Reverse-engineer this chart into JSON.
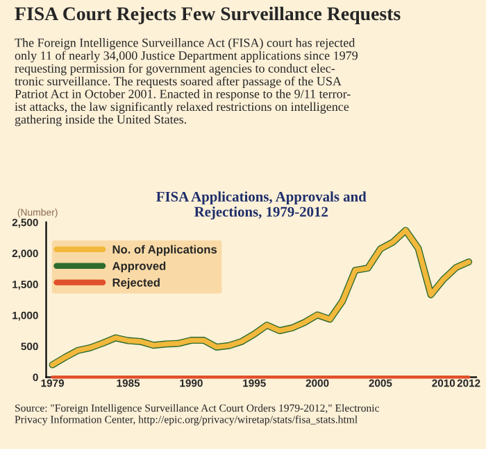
{
  "chart_data": {
    "type": "line",
    "title": "FISA Applications, Approvals and\nRejections, 1979-2012",
    "ylabel": "(Number)",
    "annotations": [
      "FISA Court Rejects Few Surveillance Requests",
      "The Foreign Intelligence Surveillance Act (FISA) court has rejected\nonly 11 of nearly 34,000 Justice Department applications since 1979\nrequesting permission for government agencies to conduct elec-\ntronic surveillance. The requests soared after passage of the USA\nPatriot Act in October 2001. Enacted in response to the 9/11 terror-\nist attacks, the law significantly relaxed restrictions on intelligence\ngathering inside the United States.",
      "Source: \"Foreign Intelligence Surveillance Act Court Orders 1979-2012,\" Electronic\nPrivacy Information Center, http://epic.org/privacy/wiretap/stats/fisa_stats.html"
    ],
    "x": [
      1979,
      1980,
      1981,
      1982,
      1983,
      1984,
      1985,
      1986,
      1987,
      1988,
      1989,
      1990,
      1991,
      1992,
      1993,
      1994,
      1995,
      1996,
      1997,
      1998,
      1999,
      2000,
      2001,
      2002,
      2003,
      2004,
      2005,
      2006,
      2007,
      2008,
      2009,
      2010,
      2011,
      2012
    ],
    "series": [
      {
        "name": "No. of Applications",
        "color": "#f2b83c",
        "values": [
          200,
          320,
          430,
          475,
          550,
          635,
          590,
          575,
          515,
          535,
          545,
          595,
          595,
          485,
          510,
          575,
          695,
          840,
          750,
          795,
          885,
          1005,
          935,
          1230,
          1725,
          1760,
          2070,
          2180,
          2370,
          2080,
          1330,
          1580,
          1770,
          1860
        ]
      },
      {
        "name": "Approved",
        "color": "#2e6b2e",
        "values": [
          200,
          320,
          430,
          475,
          550,
          635,
          590,
          575,
          515,
          535,
          545,
          595,
          595,
          485,
          510,
          575,
          695,
          840,
          750,
          795,
          885,
          1005,
          935,
          1230,
          1725,
          1760,
          2070,
          2180,
          2370,
          2080,
          1330,
          1580,
          1770,
          1860
        ]
      },
      {
        "name": "Rejected",
        "color": "#e0502a",
        "values": [
          0,
          0,
          0,
          0,
          0,
          0,
          0,
          0,
          0,
          0,
          0,
          0,
          0,
          0,
          0,
          0,
          0,
          0,
          0,
          0,
          0,
          0,
          0,
          0,
          0,
          0,
          0,
          0,
          0,
          0,
          0,
          0,
          0,
          0
        ]
      }
    ],
    "xlim": [
      1978.5,
      2012.6
    ],
    "xticks": [
      1979,
      1985,
      1990,
      1995,
      2000,
      2005,
      2010,
      2012
    ],
    "ylim": [
      0,
      2500
    ],
    "yticks": [
      0,
      {
        "value": 500,
        "label": "500"
      },
      {
        "value": 1000,
        "label": "1,000"
      },
      {
        "value": 1500,
        "label": "1,500"
      },
      {
        "value": 2000,
        "label": "2,000"
      },
      {
        "value": 2500,
        "label": "2,500"
      }
    ],
    "legend": "top left",
    "grid": false,
    "line_style": "solid",
    "marker": "none"
  }
}
